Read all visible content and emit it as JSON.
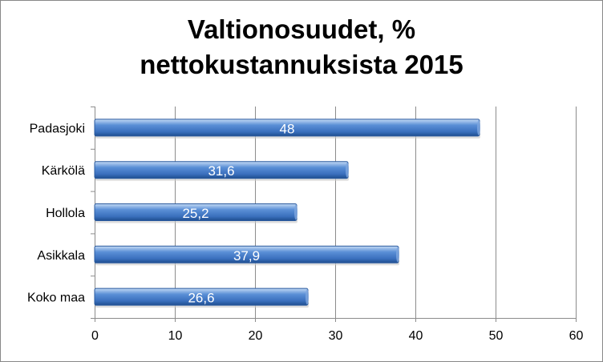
{
  "chart_data": {
    "type": "bar",
    "orientation": "horizontal",
    "title_lines": [
      "Valtionosuudet, %",
      "nettokustannuksista 2015"
    ],
    "categories": [
      "Padasjoki",
      "Kärkölä",
      "Hollola",
      "Asikkala",
      "Koko maa"
    ],
    "values": [
      48,
      31.6,
      25.2,
      37.9,
      26.6
    ],
    "data_labels": [
      "48",
      "31,6",
      "25,2",
      "37,9",
      "26,6"
    ],
    "xlim": [
      0,
      60
    ],
    "xticks": [
      0,
      10,
      20,
      30,
      40,
      50,
      60
    ],
    "xtick_labels": [
      "0",
      "10",
      "20",
      "30",
      "40",
      "50",
      "60"
    ],
    "xlabel": "",
    "ylabel": "",
    "grid": "vertical",
    "legend": "none",
    "bar_color": "#4a7ec8",
    "bar_color_light": "#a9c6ef",
    "bar_color_dark": "#1f4e8f"
  }
}
